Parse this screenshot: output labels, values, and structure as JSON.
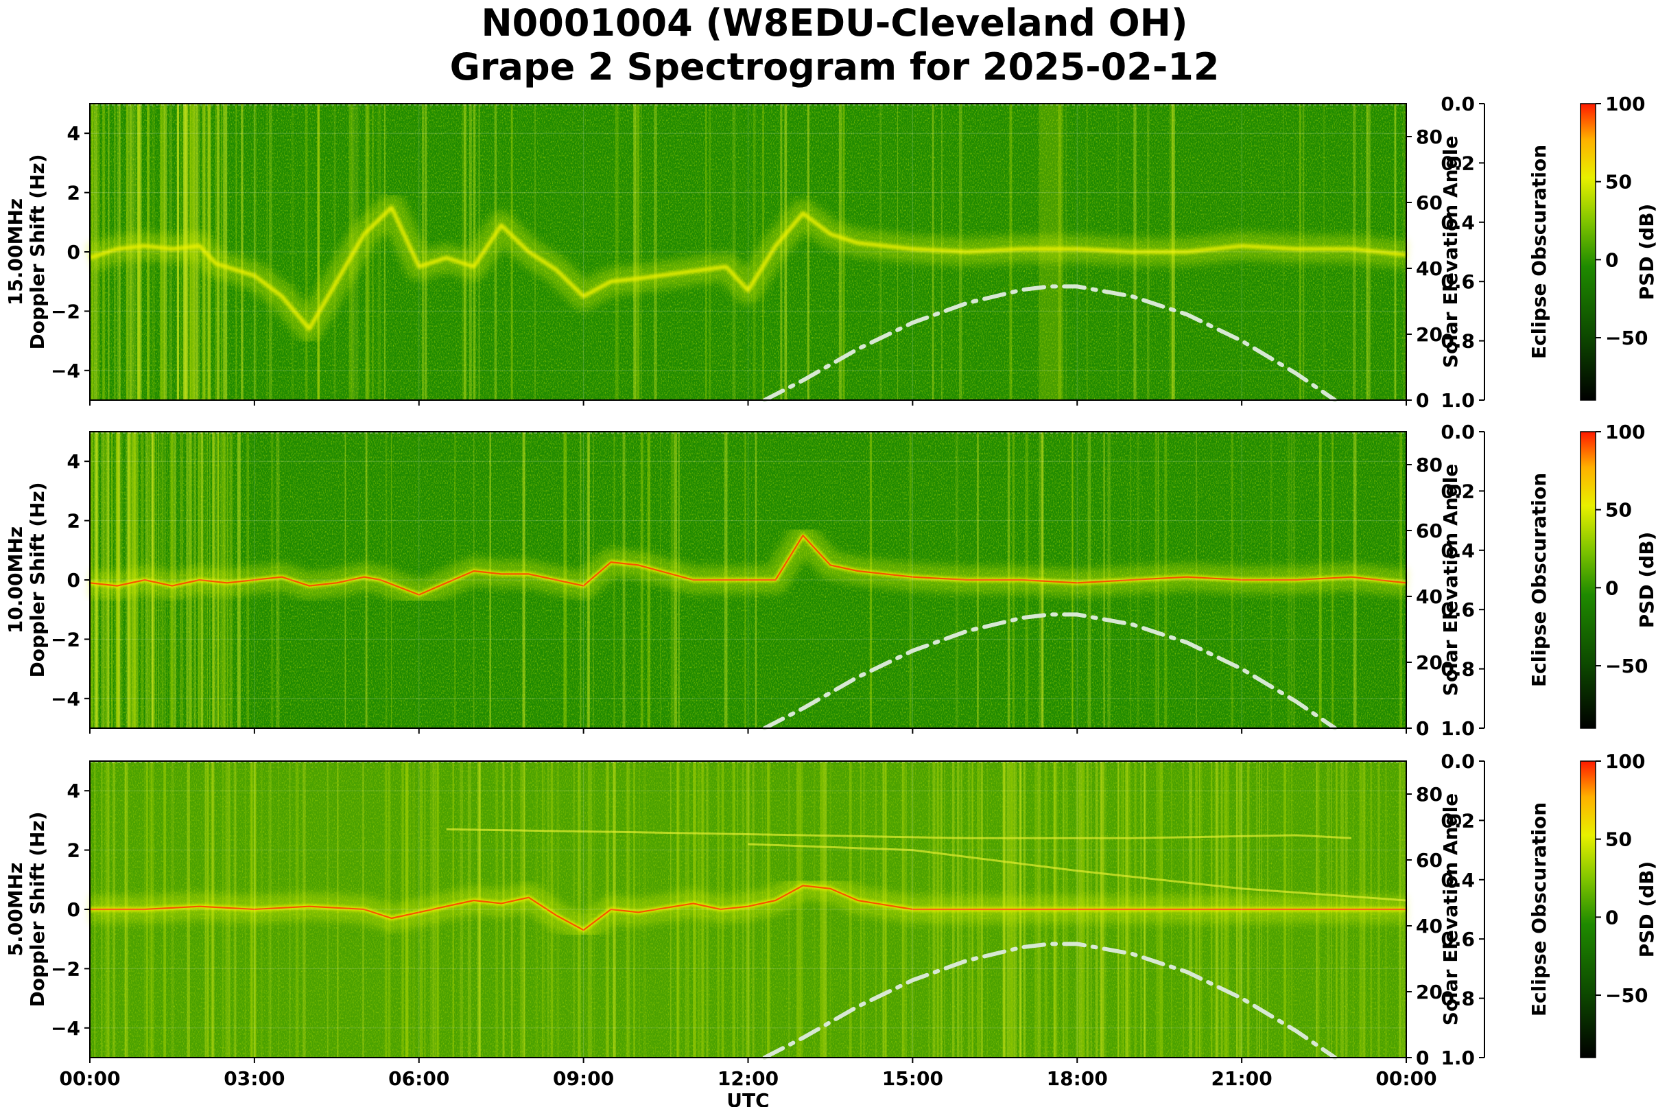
{
  "title_line1": "N0001004 (W8EDU-Cleveland OH)",
  "title_line2": "Grape 2 Spectrogram for 2025-02-12",
  "xlabel": "UTC",
  "right_axis_label": "Solar Elevation Angle",
  "eclipse_label": "Eclipse Obscuration",
  "colorbar_label": "PSD (dB)",
  "colors": {
    "background_green": "#1f8a00",
    "carrier_red": "#ff3000",
    "solar_curve": "#d8e8d4"
  },
  "chart_data": [
    {
      "type": "heatmap",
      "panel": "15.00MHz",
      "ylabel": "Doppler Shift (Hz)",
      "xlabel": "",
      "x_ticks": [
        "00:00",
        "03:00",
        "06:00",
        "09:00",
        "12:00",
        "15:00",
        "18:00",
        "21:00",
        "00:00"
      ],
      "xlim_hours": [
        0,
        24
      ],
      "ylim": [
        -5,
        5
      ],
      "y_ticks": [
        -4,
        -2,
        0,
        2,
        4
      ],
      "right_ylim": [
        0,
        90
      ],
      "right_ticks": [
        0,
        20,
        40,
        60,
        80
      ],
      "eclipse_ylim": [
        1.0,
        0.0
      ],
      "eclipse_ticks": [
        "0.0",
        "0.2",
        "0.4",
        "0.6",
        "0.8",
        "1.0"
      ],
      "colorbar_range": [
        -90,
        100
      ],
      "colorbar_ticks": [
        -50,
        0,
        50,
        100
      ],
      "doppler_trace": {
        "t": [
          0,
          0.5,
          1,
          1.5,
          2,
          2.3,
          3,
          3.5,
          4,
          4.5,
          5,
          5.5,
          6,
          6.5,
          7,
          7.5,
          8,
          8.5,
          9,
          9.5,
          10,
          11.6,
          12,
          12.5,
          13,
          13.5,
          14,
          15,
          16,
          17,
          18,
          19,
          20,
          21,
          22,
          23,
          24
        ],
        "hz": [
          -0.2,
          0.1,
          0.2,
          0.1,
          0.2,
          -0.4,
          -0.8,
          -1.5,
          -2.6,
          -1.0,
          0.6,
          1.5,
          -0.5,
          -0.2,
          -0.5,
          0.9,
          0.0,
          -0.6,
          -1.5,
          -1.0,
          -0.9,
          -0.5,
          -1.3,
          0.2,
          1.3,
          0.6,
          0.3,
          0.1,
          0.0,
          0.1,
          0.1,
          0.0,
          0.0,
          0.2,
          0.1,
          0.1,
          -0.1
        ]
      },
      "solar_elevation": {
        "t": [
          12.3,
          13,
          14,
          15,
          16,
          17,
          17.5,
          18,
          19,
          20,
          21,
          22,
          22.7
        ],
        "deg": [
          0,
          6,
          15.5,
          23.5,
          29.5,
          33.5,
          34.5,
          34.5,
          31.5,
          26,
          18,
          8,
          0
        ]
      }
    },
    {
      "type": "heatmap",
      "panel": "10.00MHz",
      "ylabel": "Doppler Shift (Hz)",
      "xlabel": "",
      "x_ticks": [
        "00:00",
        "03:00",
        "06:00",
        "09:00",
        "12:00",
        "15:00",
        "18:00",
        "21:00",
        "00:00"
      ],
      "xlim_hours": [
        0,
        24
      ],
      "ylim": [
        -5,
        5
      ],
      "y_ticks": [
        -4,
        -2,
        0,
        2,
        4
      ],
      "right_ylim": [
        0,
        90
      ],
      "right_ticks": [
        0,
        20,
        40,
        60,
        80
      ],
      "eclipse_ylim": [
        1.0,
        0.0
      ],
      "eclipse_ticks": [
        "0.0",
        "0.2",
        "0.4",
        "0.6",
        "0.8",
        "1.0"
      ],
      "colorbar_range": [
        -90,
        100
      ],
      "colorbar_ticks": [
        -50,
        0,
        50,
        100
      ],
      "doppler_trace": {
        "t": [
          0,
          0.5,
          1,
          1.5,
          2,
          2.5,
          3,
          3.5,
          4,
          4.5,
          5,
          5.3,
          6,
          7,
          7.5,
          8,
          8.5,
          9,
          9.5,
          10,
          11,
          12,
          12.5,
          13,
          13.5,
          14,
          15,
          16,
          17,
          18,
          19,
          20,
          21,
          22,
          23,
          24
        ],
        "hz": [
          -0.1,
          -0.2,
          0.0,
          -0.2,
          0.0,
          -0.1,
          0.0,
          0.1,
          -0.2,
          -0.1,
          0.1,
          0.0,
          -0.5,
          0.3,
          0.2,
          0.2,
          0.0,
          -0.2,
          0.6,
          0.5,
          0.0,
          0.0,
          0.0,
          1.5,
          0.5,
          0.3,
          0.1,
          0.0,
          0.0,
          -0.1,
          0.0,
          0.1,
          0.0,
          0.0,
          0.1,
          -0.1
        ]
      },
      "solar_elevation": {
        "t": [
          12.3,
          13,
          14,
          15,
          16,
          17,
          17.5,
          18,
          19,
          20,
          21,
          22,
          22.7
        ],
        "deg": [
          0,
          6,
          15.5,
          23.5,
          29.5,
          33.5,
          34.5,
          34.5,
          31.5,
          26,
          18,
          8,
          0
        ]
      }
    },
    {
      "type": "heatmap",
      "panel": "5.00MHz",
      "ylabel": "Doppler Shift (Hz)",
      "xlabel": "UTC",
      "x_ticks": [
        "00:00",
        "03:00",
        "06:00",
        "09:00",
        "12:00",
        "15:00",
        "18:00",
        "21:00",
        "00:00"
      ],
      "xlim_hours": [
        0,
        24
      ],
      "ylim": [
        -5,
        5
      ],
      "y_ticks": [
        -4,
        -2,
        0,
        2,
        4
      ],
      "right_ylim": [
        0,
        90
      ],
      "right_ticks": [
        0,
        20,
        40,
        60,
        80
      ],
      "eclipse_ylim": [
        1.0,
        0.0
      ],
      "eclipse_ticks": [
        "0.0",
        "0.2",
        "0.4",
        "0.6",
        "0.8",
        "1.0"
      ],
      "colorbar_range": [
        -90,
        100
      ],
      "colorbar_ticks": [
        -50,
        0,
        50,
        100
      ],
      "doppler_trace": {
        "t": [
          0,
          1,
          2,
          3,
          4,
          5,
          5.5,
          6,
          7,
          7.5,
          8,
          8.5,
          9,
          9.5,
          10,
          11,
          11.5,
          12,
          12.5,
          13,
          13.5,
          14,
          15,
          24
        ],
        "hz": [
          0.0,
          0.0,
          0.1,
          0.0,
          0.1,
          0.0,
          -0.3,
          -0.1,
          0.3,
          0.2,
          0.4,
          -0.2,
          -0.7,
          0.0,
          -0.1,
          0.2,
          0.0,
          0.1,
          0.3,
          0.8,
          0.7,
          0.3,
          0.0,
          0.0
        ]
      },
      "secondary_traces": [
        {
          "t": [
            12,
            15,
            18,
            21,
            24
          ],
          "hz": [
            2.2,
            2.0,
            1.3,
            0.7,
            0.3
          ]
        },
        {
          "t": [
            6.5,
            10,
            13,
            16,
            19,
            22,
            23
          ],
          "hz": [
            2.7,
            2.6,
            2.5,
            2.4,
            2.4,
            2.5,
            2.4
          ]
        }
      ],
      "solar_elevation": {
        "t": [
          12.3,
          13,
          14,
          15,
          16,
          17,
          17.5,
          18,
          19,
          20,
          21,
          22,
          22.7
        ],
        "deg": [
          0,
          6,
          15.5,
          23.5,
          29.5,
          33.5,
          34.5,
          34.5,
          31.5,
          26,
          18,
          8,
          0
        ]
      }
    }
  ]
}
